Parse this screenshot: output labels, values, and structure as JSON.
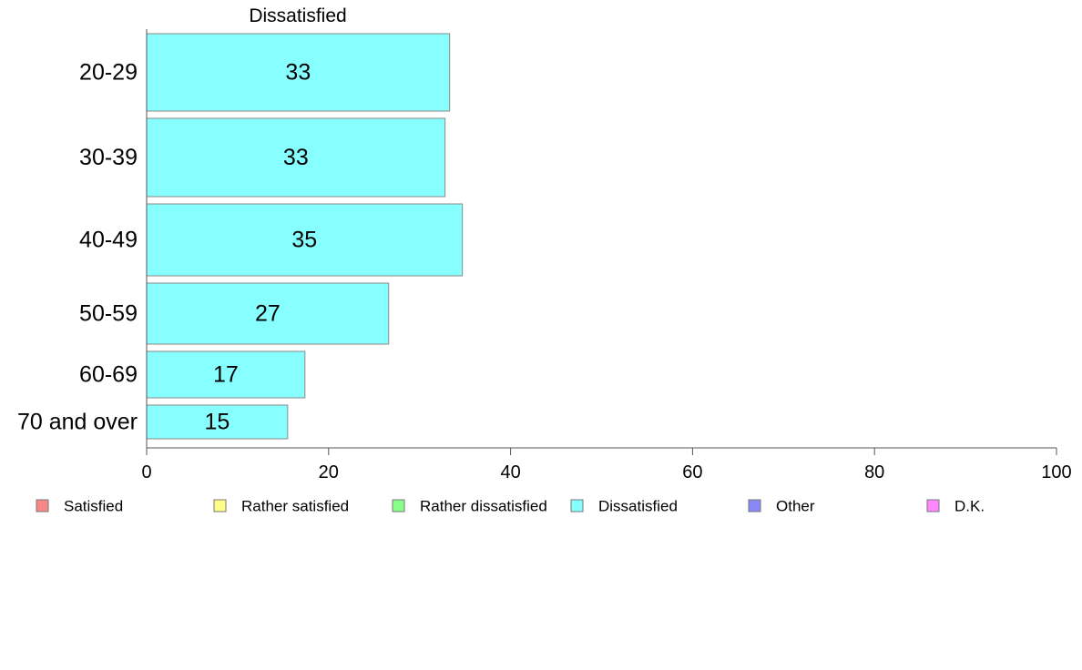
{
  "chart_data": {
    "type": "bar",
    "orientation": "horizontal",
    "title": "Dissatisfied",
    "categories": [
      "20-29",
      "30-39",
      "40-49",
      "50-59",
      "60-69",
      "70 and over"
    ],
    "values": [
      33.3,
      32.8,
      34.7,
      26.6,
      17.4,
      15.5
    ],
    "value_labels": [
      "33",
      "33",
      "35",
      "27",
      "17",
      "15"
    ],
    "bar_color": "#88ffff",
    "xlim": [
      0,
      100
    ],
    "xticks": [
      0,
      20,
      40,
      60,
      80,
      100
    ],
    "xtick_labels": [
      "0",
      "20",
      "40",
      "60",
      "80",
      "100"
    ],
    "grid": false,
    "legend_position": "bottom",
    "legend": [
      {
        "label": "Satisfied",
        "color": "#f88888"
      },
      {
        "label": "Rather satisfied",
        "color": "#ffff88"
      },
      {
        "label": "Rather dissatisfied",
        "color": "#88ff88"
      },
      {
        "label": "Dissatisfied",
        "color": "#88ffff"
      },
      {
        "label": "Other",
        "color": "#8888f8"
      },
      {
        "label": "D.K.",
        "color": "#ff88ff"
      }
    ]
  }
}
